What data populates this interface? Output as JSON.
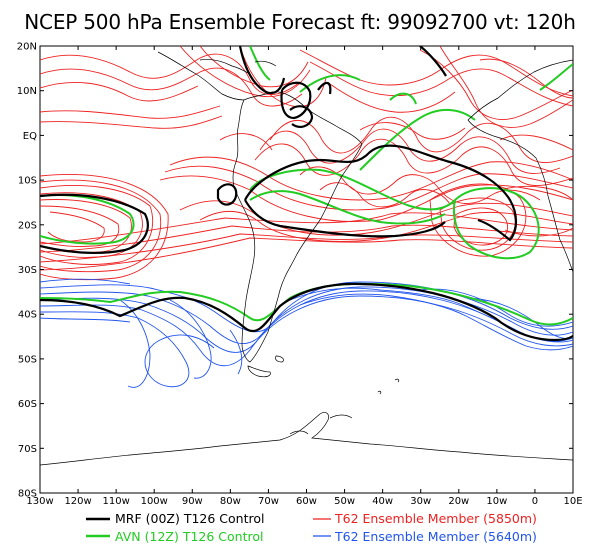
{
  "title": "NCEP 500 hPa Ensemble Forecast  ft: 99092700 vt: 120h",
  "lat_labels": [
    "20N",
    "10N",
    "EQ",
    "10S",
    "20S",
    "30S",
    "40S",
    "50S",
    "60S",
    "70S",
    "80S"
  ],
  "lon_labels": [
    "130w",
    "120w",
    "110w",
    "100w",
    "90w",
    "80w",
    "70w",
    "60w",
    "50w",
    "40w",
    "30w",
    "20w",
    "10w",
    "0",
    "10E"
  ],
  "legend": [
    {
      "label": "MRF (00Z) T126 Control",
      "color": "#000000"
    },
    {
      "label": "AVN (12Z) T126 Control",
      "color": "#22cc22"
    },
    {
      "label": "T62 Ensemble Member (5850m)",
      "color": "#ee2222"
    },
    {
      "label": "T62 Ensemble Member (5640m)",
      "color": "#2255ee"
    }
  ],
  "colors": {
    "mrf": "#000000",
    "avn": "#22cc22",
    "red": "#ee2222",
    "blue": "#2255ee",
    "coast": "#000000"
  }
}
